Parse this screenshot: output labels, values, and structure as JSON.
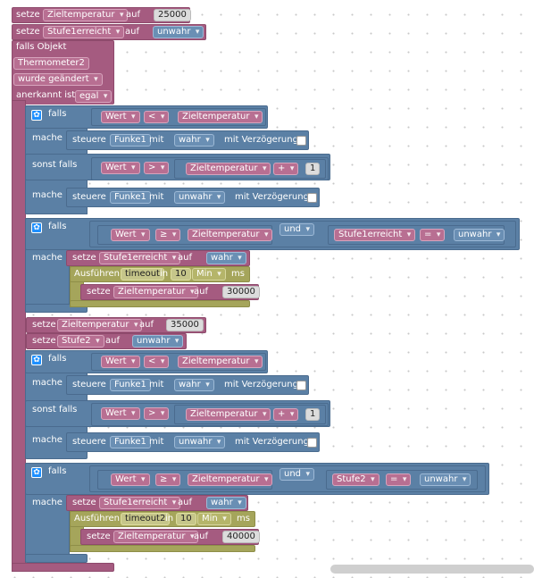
{
  "labels": {
    "set": "setze",
    "to": "auf",
    "if_object": "falls Objekt",
    "was_changed": "wurde geändert",
    "acknowledged": "anerkannt ist",
    "if": "falls",
    "do": "mache",
    "else_if": "sonst falls",
    "control": "steuere",
    "with": "mit",
    "with_delay": "mit Verzögerung",
    "and": "und",
    "execute": "Ausführen",
    "in": "in",
    "ms": "ms"
  },
  "variables": {
    "target_temp": "Zieltemperatur",
    "stage1": "Stufe1erreicht",
    "stage2": "Stufe2",
    "value": "Wert",
    "device": "Funke1",
    "timeout1": "timeout",
    "timeout2": "timeout2"
  },
  "values": {
    "v25000": "25000",
    "v35000": "35000",
    "v30000": "30000",
    "v40000": "40000",
    "false": "unwahr",
    "true": "wahr",
    "object": "Thermometer2",
    "any": "egal",
    "one": "1",
    "ten": "10",
    "min": "Min"
  },
  "operators": {
    "lt": "<",
    "gt": ">",
    "ge": "≥",
    "plus": "+",
    "eq": "="
  },
  "colors": {
    "variable_block": "#a55b80",
    "logic_block": "#5b80a5",
    "timer_block": "#a5a55b",
    "canvas": "#ffffff"
  }
}
